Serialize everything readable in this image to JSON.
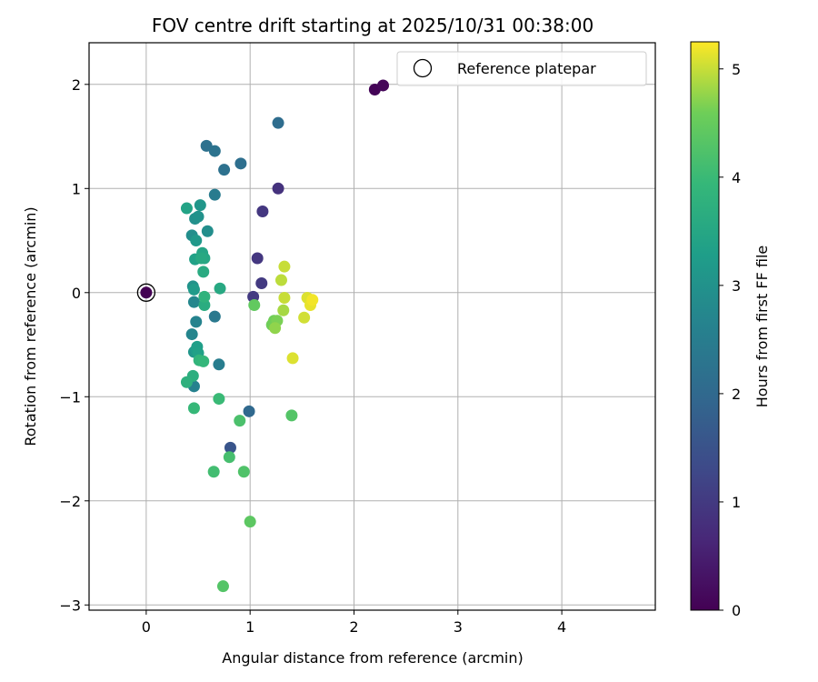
{
  "chart_data": {
    "type": "scatter",
    "title": "FOV centre drift starting at 2025/10/31 00:38:00",
    "xlabel": "Angular distance from reference (arcmin)",
    "ylabel": "Rotation from reference (arcmin)",
    "xlim": [
      -0.55,
      4.9
    ],
    "ylim": [
      -3.05,
      2.4
    ],
    "xticks": [
      0,
      1,
      2,
      3,
      4
    ],
    "yticks": [
      -3,
      -2,
      -1,
      0,
      1,
      2
    ],
    "xtick_labels": [
      "0",
      "1",
      "2",
      "3",
      "4"
    ],
    "ytick_labels": [
      "−3",
      "−2",
      "−1",
      "0",
      "1",
      "2"
    ],
    "grid": true,
    "legend": {
      "position": "top-right",
      "label": "Reference platepar"
    },
    "reference_point": {
      "x": 0,
      "y": 0
    },
    "colorbar": {
      "label": "Hours from first FF file",
      "range": [
        0,
        5.25
      ],
      "ticks": [
        0,
        1,
        2,
        3,
        4,
        5
      ],
      "tick_labels": [
        "0",
        "1",
        "2",
        "3",
        "4",
        "5"
      ],
      "colormap": "viridis"
    },
    "points": [
      {
        "x": 0.0,
        "y": 0.0,
        "c": 0.0
      },
      {
        "x": 2.2,
        "y": 1.95,
        "c": 0.05
      },
      {
        "x": 2.28,
        "y": 1.99,
        "c": 0.1
      },
      {
        "x": 1.27,
        "y": 1.0,
        "c": 0.85
      },
      {
        "x": 1.12,
        "y": 0.78,
        "c": 0.95
      },
      {
        "x": 1.07,
        "y": 0.33,
        "c": 0.95
      },
      {
        "x": 1.11,
        "y": 0.09,
        "c": 1.0
      },
      {
        "x": 1.03,
        "y": -0.04,
        "c": 1.0
      },
      {
        "x": 0.81,
        "y": -1.49,
        "c": 1.55
      },
      {
        "x": 0.99,
        "y": -1.14,
        "c": 2.0
      },
      {
        "x": 1.27,
        "y": 1.63,
        "c": 2.1
      },
      {
        "x": 0.91,
        "y": 1.24,
        "c": 2.15
      },
      {
        "x": 0.75,
        "y": 1.18,
        "c": 2.2
      },
      {
        "x": 0.58,
        "y": 1.41,
        "c": 2.2
      },
      {
        "x": 0.66,
        "y": 1.36,
        "c": 2.25
      },
      {
        "x": 0.66,
        "y": 0.94,
        "c": 2.45
      },
      {
        "x": 0.66,
        "y": -0.23,
        "c": 2.4
      },
      {
        "x": 0.7,
        "y": -0.69,
        "c": 2.5
      },
      {
        "x": 0.46,
        "y": -0.9,
        "c": 2.6
      },
      {
        "x": 0.44,
        "y": -0.4,
        "c": 2.7
      },
      {
        "x": 0.48,
        "y": -0.28,
        "c": 2.65
      },
      {
        "x": 0.46,
        "y": -0.09,
        "c": 2.75
      },
      {
        "x": 0.44,
        "y": 0.55,
        "c": 2.9
      },
      {
        "x": 0.59,
        "y": 0.59,
        "c": 2.9
      },
      {
        "x": 0.47,
        "y": 0.71,
        "c": 2.95
      },
      {
        "x": 0.45,
        "y": 0.06,
        "c": 3.0
      },
      {
        "x": 0.5,
        "y": 0.73,
        "c": 3.0
      },
      {
        "x": 0.52,
        "y": 0.84,
        "c": 3.1
      },
      {
        "x": 0.48,
        "y": 0.5,
        "c": 3.15
      },
      {
        "x": 0.46,
        "y": 0.03,
        "c": 3.2
      },
      {
        "x": 0.46,
        "y": -0.57,
        "c": 3.1
      },
      {
        "x": 0.48,
        "y": -0.55,
        "c": 3.2
      },
      {
        "x": 0.49,
        "y": -0.52,
        "c": 3.3
      },
      {
        "x": 0.5,
        "y": -0.58,
        "c": 3.35
      },
      {
        "x": 0.47,
        "y": 0.32,
        "c": 3.35
      },
      {
        "x": 0.39,
        "y": 0.81,
        "c": 3.4
      },
      {
        "x": 0.54,
        "y": 0.38,
        "c": 3.45
      },
      {
        "x": 0.56,
        "y": 0.33,
        "c": 3.5
      },
      {
        "x": 0.53,
        "y": 0.33,
        "c": 3.55
      },
      {
        "x": 0.71,
        "y": 0.04,
        "c": 3.55
      },
      {
        "x": 0.55,
        "y": 0.2,
        "c": 3.6
      },
      {
        "x": 0.56,
        "y": -0.12,
        "c": 3.65
      },
      {
        "x": 0.56,
        "y": -0.04,
        "c": 3.8
      },
      {
        "x": 0.45,
        "y": -0.8,
        "c": 3.7
      },
      {
        "x": 0.39,
        "y": -0.86,
        "c": 3.75
      },
      {
        "x": 0.51,
        "y": -0.65,
        "c": 3.85
      },
      {
        "x": 0.55,
        "y": -0.66,
        "c": 3.9
      },
      {
        "x": 0.46,
        "y": -1.11,
        "c": 3.95
      },
      {
        "x": 0.7,
        "y": -1.02,
        "c": 4.0
      },
      {
        "x": 0.65,
        "y": -1.72,
        "c": 4.1
      },
      {
        "x": 0.8,
        "y": -1.58,
        "c": 4.15
      },
      {
        "x": 0.94,
        "y": -1.72,
        "c": 4.25
      },
      {
        "x": 0.9,
        "y": -1.23,
        "c": 4.2
      },
      {
        "x": 0.74,
        "y": -2.82,
        "c": 4.3
      },
      {
        "x": 1.0,
        "y": -2.2,
        "c": 4.4
      },
      {
        "x": 1.4,
        "y": -1.18,
        "c": 4.3
      },
      {
        "x": 1.04,
        "y": -0.12,
        "c": 4.45
      },
      {
        "x": 1.21,
        "y": -0.31,
        "c": 4.6
      },
      {
        "x": 1.23,
        "y": -0.27,
        "c": 4.6
      },
      {
        "x": 1.26,
        "y": -0.27,
        "c": 4.65
      },
      {
        "x": 1.24,
        "y": -0.34,
        "c": 4.75
      },
      {
        "x": 1.32,
        "y": -0.17,
        "c": 4.85
      },
      {
        "x": 1.3,
        "y": 0.12,
        "c": 4.95
      },
      {
        "x": 1.33,
        "y": -0.05,
        "c": 5.0
      },
      {
        "x": 1.33,
        "y": 0.25,
        "c": 5.0
      },
      {
        "x": 1.41,
        "y": -0.63,
        "c": 5.1
      },
      {
        "x": 1.52,
        "y": -0.24,
        "c": 5.05
      },
      {
        "x": 1.55,
        "y": -0.05,
        "c": 5.1
      },
      {
        "x": 1.58,
        "y": -0.12,
        "c": 5.15
      },
      {
        "x": 1.6,
        "y": -0.07,
        "c": 5.2
      }
    ]
  }
}
